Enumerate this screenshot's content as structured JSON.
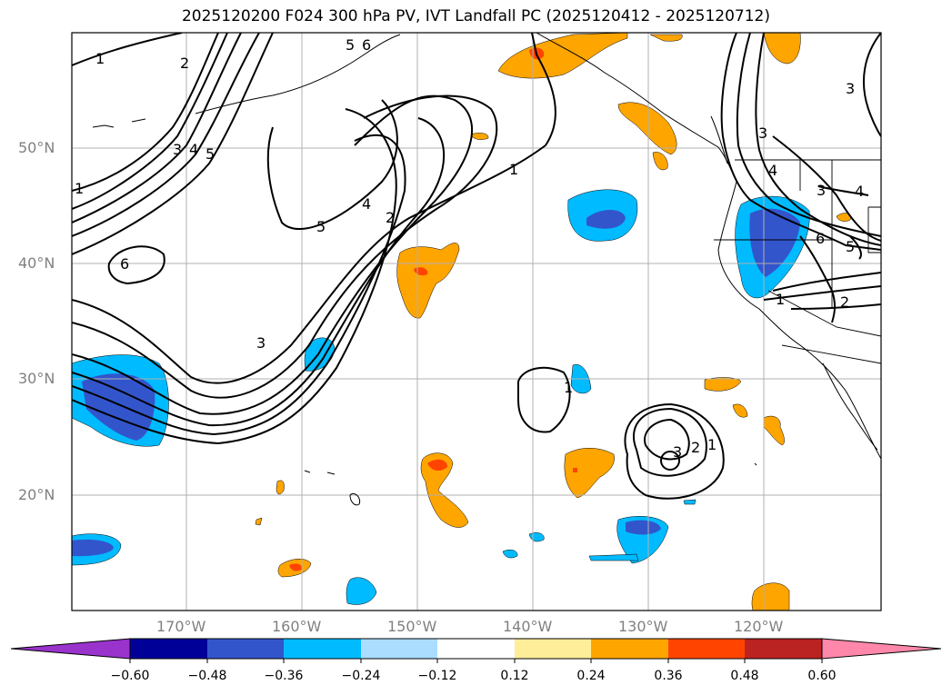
{
  "title": "2025120200 F024 300 hPa PV, IVT Landfall PC (2025120412 - 2025120712)",
  "latitude_labels": [
    "50°N",
    "40°N",
    "30°N",
    "20°N"
  ],
  "longitude_labels": [
    "170°W",
    "160°W",
    "150°W",
    "140°W",
    "130°W",
    "120°W"
  ],
  "colorbar": {
    "tick_labels": [
      "−0.60",
      "−0.48",
      "−0.36",
      "−0.24",
      "−0.12",
      "0.12",
      "0.24",
      "0.36",
      "0.48",
      "0.60"
    ],
    "colors": [
      "#9933cc",
      "#000099",
      "#3355cc",
      "#00bbff",
      "#aaddff",
      "#ffffff",
      "#ffee99",
      "#ffa500",
      "#ff4400",
      "#bb2222",
      "#ff88aa"
    ]
  },
  "contour_labels": [
    "1",
    "2",
    "3",
    "4",
    "5",
    "6"
  ],
  "colors": {
    "pv_contour": "#000000",
    "ivt_negative": "#00bbff",
    "ivt_negative_strong": "#3355cc",
    "ivt_positive": "#ffa500",
    "ivt_positive_strong": "#ff4400",
    "grid": "#b0b0b0"
  }
}
